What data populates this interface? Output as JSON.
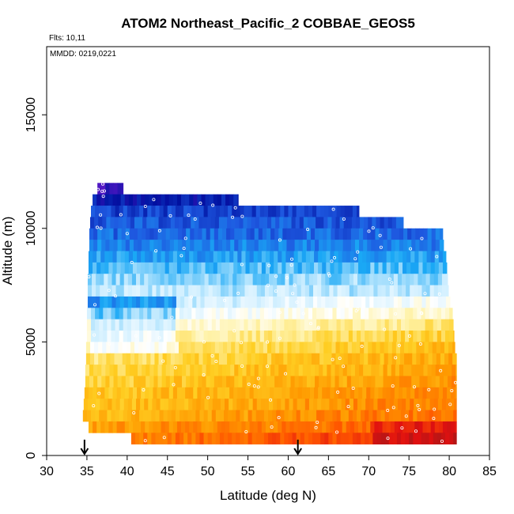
{
  "chart_data": {
    "type": "heatmap",
    "title": "ATOM2 Northeast_Pacific_2 COBBAE_GEOS5",
    "annotations": [
      "Flts: 10,11",
      "MMDD: 0219,0221"
    ],
    "xlabel": "Latitude (deg N)",
    "ylabel": "Altitude (m)",
    "xlim": [
      30,
      85
    ],
    "ylim": [
      0,
      18000
    ],
    "xticks": [
      30,
      35,
      40,
      45,
      50,
      55,
      60,
      65,
      70,
      75,
      80,
      85
    ],
    "yticks": [
      0,
      5000,
      10000,
      15000
    ],
    "grid": false,
    "color_scale": [
      "#5b18c8",
      "#0010a0",
      "#1e58e0",
      "#1aa8f5",
      "#cdeeff",
      "#ffffff",
      "#fff2a8",
      "#ffce22",
      "#ff9a00",
      "#ff5500",
      "#e01010",
      "#a81818"
    ],
    "arrow_markers_x": [
      34.7,
      61.2
    ],
    "altitude_bins": [
      {
        "alt": [
          11500,
          12000
        ],
        "lat": [
          36.3,
          39.5
        ],
        "level": 0.04
      },
      {
        "alt": [
          11000,
          11500
        ],
        "lat": [
          35.7,
          53.8
        ],
        "level": 0.1
      },
      {
        "alt": [
          10500,
          11000
        ],
        "lat": [
          35.5,
          68.8
        ],
        "level": 0.15
      },
      {
        "alt": [
          10000,
          10500
        ],
        "lat": [
          35.4,
          74.3
        ],
        "level": 0.18
      },
      {
        "alt": [
          9500,
          10000
        ],
        "lat": [
          35.3,
          79.2
        ],
        "level": 0.2
      },
      {
        "alt": [
          9000,
          9500
        ],
        "lat": [
          35.3,
          79.3
        ],
        "level": 0.23
      },
      {
        "alt": [
          8500,
          9000
        ],
        "lat": [
          35.2,
          79.6
        ],
        "level": 0.26
      },
      {
        "alt": [
          8000,
          8500
        ],
        "lat": [
          35.2,
          79.7
        ],
        "level": 0.3
      },
      {
        "alt": [
          7500,
          8000
        ],
        "lat": [
          35.1,
          79.8
        ],
        "level": 0.33
      },
      {
        "alt": [
          7000,
          7500
        ],
        "lat": [
          35.1,
          79.9
        ],
        "level": 0.36
      },
      {
        "alt": [
          6500,
          7000
        ],
        "lat": [
          35.1,
          80.1
        ],
        "level": 0.4
      },
      {
        "alt": [
          6000,
          6500
        ],
        "lat": [
          35.0,
          80.4
        ],
        "level": 0.46
      },
      {
        "alt": [
          5500,
          6000
        ],
        "lat": [
          35.0,
          80.5
        ],
        "level": 0.52
      },
      {
        "alt": [
          5000,
          5500
        ],
        "lat": [
          35.0,
          80.6
        ],
        "level": 0.57
      },
      {
        "alt": [
          4500,
          5000
        ],
        "lat": [
          34.9,
          80.7
        ],
        "level": 0.61
      },
      {
        "alt": [
          4000,
          4500
        ],
        "lat": [
          34.9,
          80.9
        ],
        "level": 0.64
      },
      {
        "alt": [
          3500,
          4000
        ],
        "lat": [
          34.8,
          80.9
        ],
        "level": 0.66
      },
      {
        "alt": [
          3000,
          3500
        ],
        "lat": [
          34.8,
          80.9
        ],
        "level": 0.68
      },
      {
        "alt": [
          2500,
          3000
        ],
        "lat": [
          34.7,
          80.9
        ],
        "level": 0.7
      },
      {
        "alt": [
          2000,
          2500
        ],
        "lat": [
          34.6,
          80.9
        ],
        "level": 0.71
      },
      {
        "alt": [
          1500,
          2000
        ],
        "lat": [
          34.5,
          80.9
        ],
        "level": 0.73
      },
      {
        "alt": [
          1000,
          1500
        ],
        "lat": [
          35.2,
          80.9
        ],
        "level": 0.77
      },
      {
        "alt": [
          500,
          1000
        ],
        "lat": [
          40.5,
          80.9
        ],
        "level": 0.82
      }
    ]
  }
}
